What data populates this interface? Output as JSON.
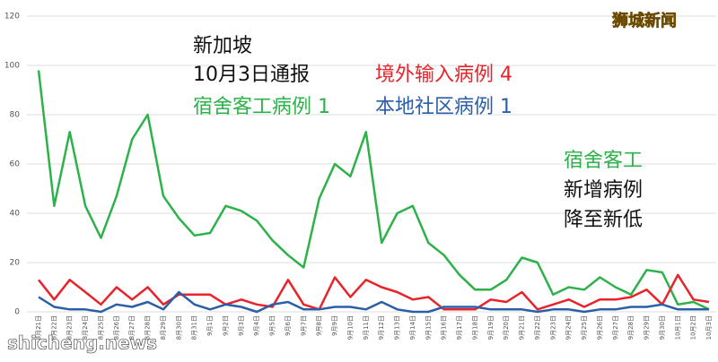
{
  "chart_data": {
    "type": "line",
    "categories": [
      "8月21日",
      "8月22日",
      "8月23日",
      "8月24日",
      "8月25日",
      "8月26日",
      "8月27日",
      "8月28日",
      "8月29日",
      "8月30日",
      "8月31日",
      "9月1日",
      "9月2日",
      "9月3日",
      "9月4日",
      "9月5日",
      "9月6日",
      "9月7日",
      "9月8日",
      "9月9日",
      "9月10日",
      "9月11日",
      "9月12日",
      "9月13日",
      "9月14日",
      "9月15日",
      "9月16日",
      "9月17日",
      "9月18日",
      "9月19日",
      "9月20日",
      "9月21日",
      "9月22日",
      "9月23日",
      "9月24日",
      "9月25日",
      "9月26日",
      "9月27日",
      "9月28日",
      "9月29日",
      "9月30日",
      "10月1日",
      "10月2日",
      "10月3日"
    ],
    "series": [
      {
        "color": "#2db24a",
        "values": [
          98,
          43,
          73,
          43,
          30,
          47,
          70,
          80,
          47,
          38,
          31,
          32,
          43,
          41,
          37,
          29,
          23,
          18,
          46,
          60,
          55,
          73,
          28,
          40,
          43,
          28,
          23,
          15,
          9,
          9,
          13,
          22,
          20,
          7,
          10,
          9,
          14,
          10,
          7,
          17,
          16,
          3,
          4,
          1
        ]
      },
      {
        "color": "#e8232a",
        "values": [
          13,
          5,
          13,
          8,
          3,
          10,
          5,
          10,
          3,
          7,
          7,
          7,
          3,
          5,
          3,
          2,
          13,
          3,
          1,
          14,
          6,
          13,
          10,
          8,
          5,
          6,
          1,
          1,
          1,
          5,
          4,
          8,
          1,
          3,
          5,
          2,
          5,
          5,
          6,
          9,
          3,
          15,
          5,
          4
        ]
      },
      {
        "color": "#2a5fa8",
        "values": [
          6,
          2,
          1,
          1,
          0,
          3,
          2,
          4,
          1,
          8,
          3,
          1,
          3,
          2,
          0,
          3,
          4,
          1,
          1,
          2,
          2,
          1,
          4,
          1,
          0,
          0,
          2,
          2,
          2,
          1,
          1,
          1,
          0,
          1,
          1,
          0,
          1,
          1,
          2,
          2,
          3,
          1,
          1,
          1
        ]
      }
    ],
    "ylim": [
      0,
      120
    ],
    "yticks": [
      0,
      20,
      40,
      60,
      80,
      100,
      120
    ],
    "grid": true,
    "annotations": [
      {
        "text": "新加坡",
        "color": "#111111"
      },
      {
        "text": "10月3日通报",
        "color": "#111111"
      },
      {
        "text": "宿舍客工病例 1",
        "color": "#2db24a"
      },
      {
        "text": "境外输入病例 4",
        "color": "#e8232a"
      },
      {
        "text": "本地社区病例 1",
        "color": "#2a5fa8"
      },
      {
        "text": "宿舍客工",
        "color": "#2db24a"
      },
      {
        "text": "新增病例",
        "color": "#111111"
      },
      {
        "text": "降至新低",
        "color": "#111111"
      },
      {
        "text": "狮城新闻",
        "color": "#f2c500"
      },
      {
        "text": "shicheng.news",
        "color": "#ffffff"
      }
    ]
  }
}
